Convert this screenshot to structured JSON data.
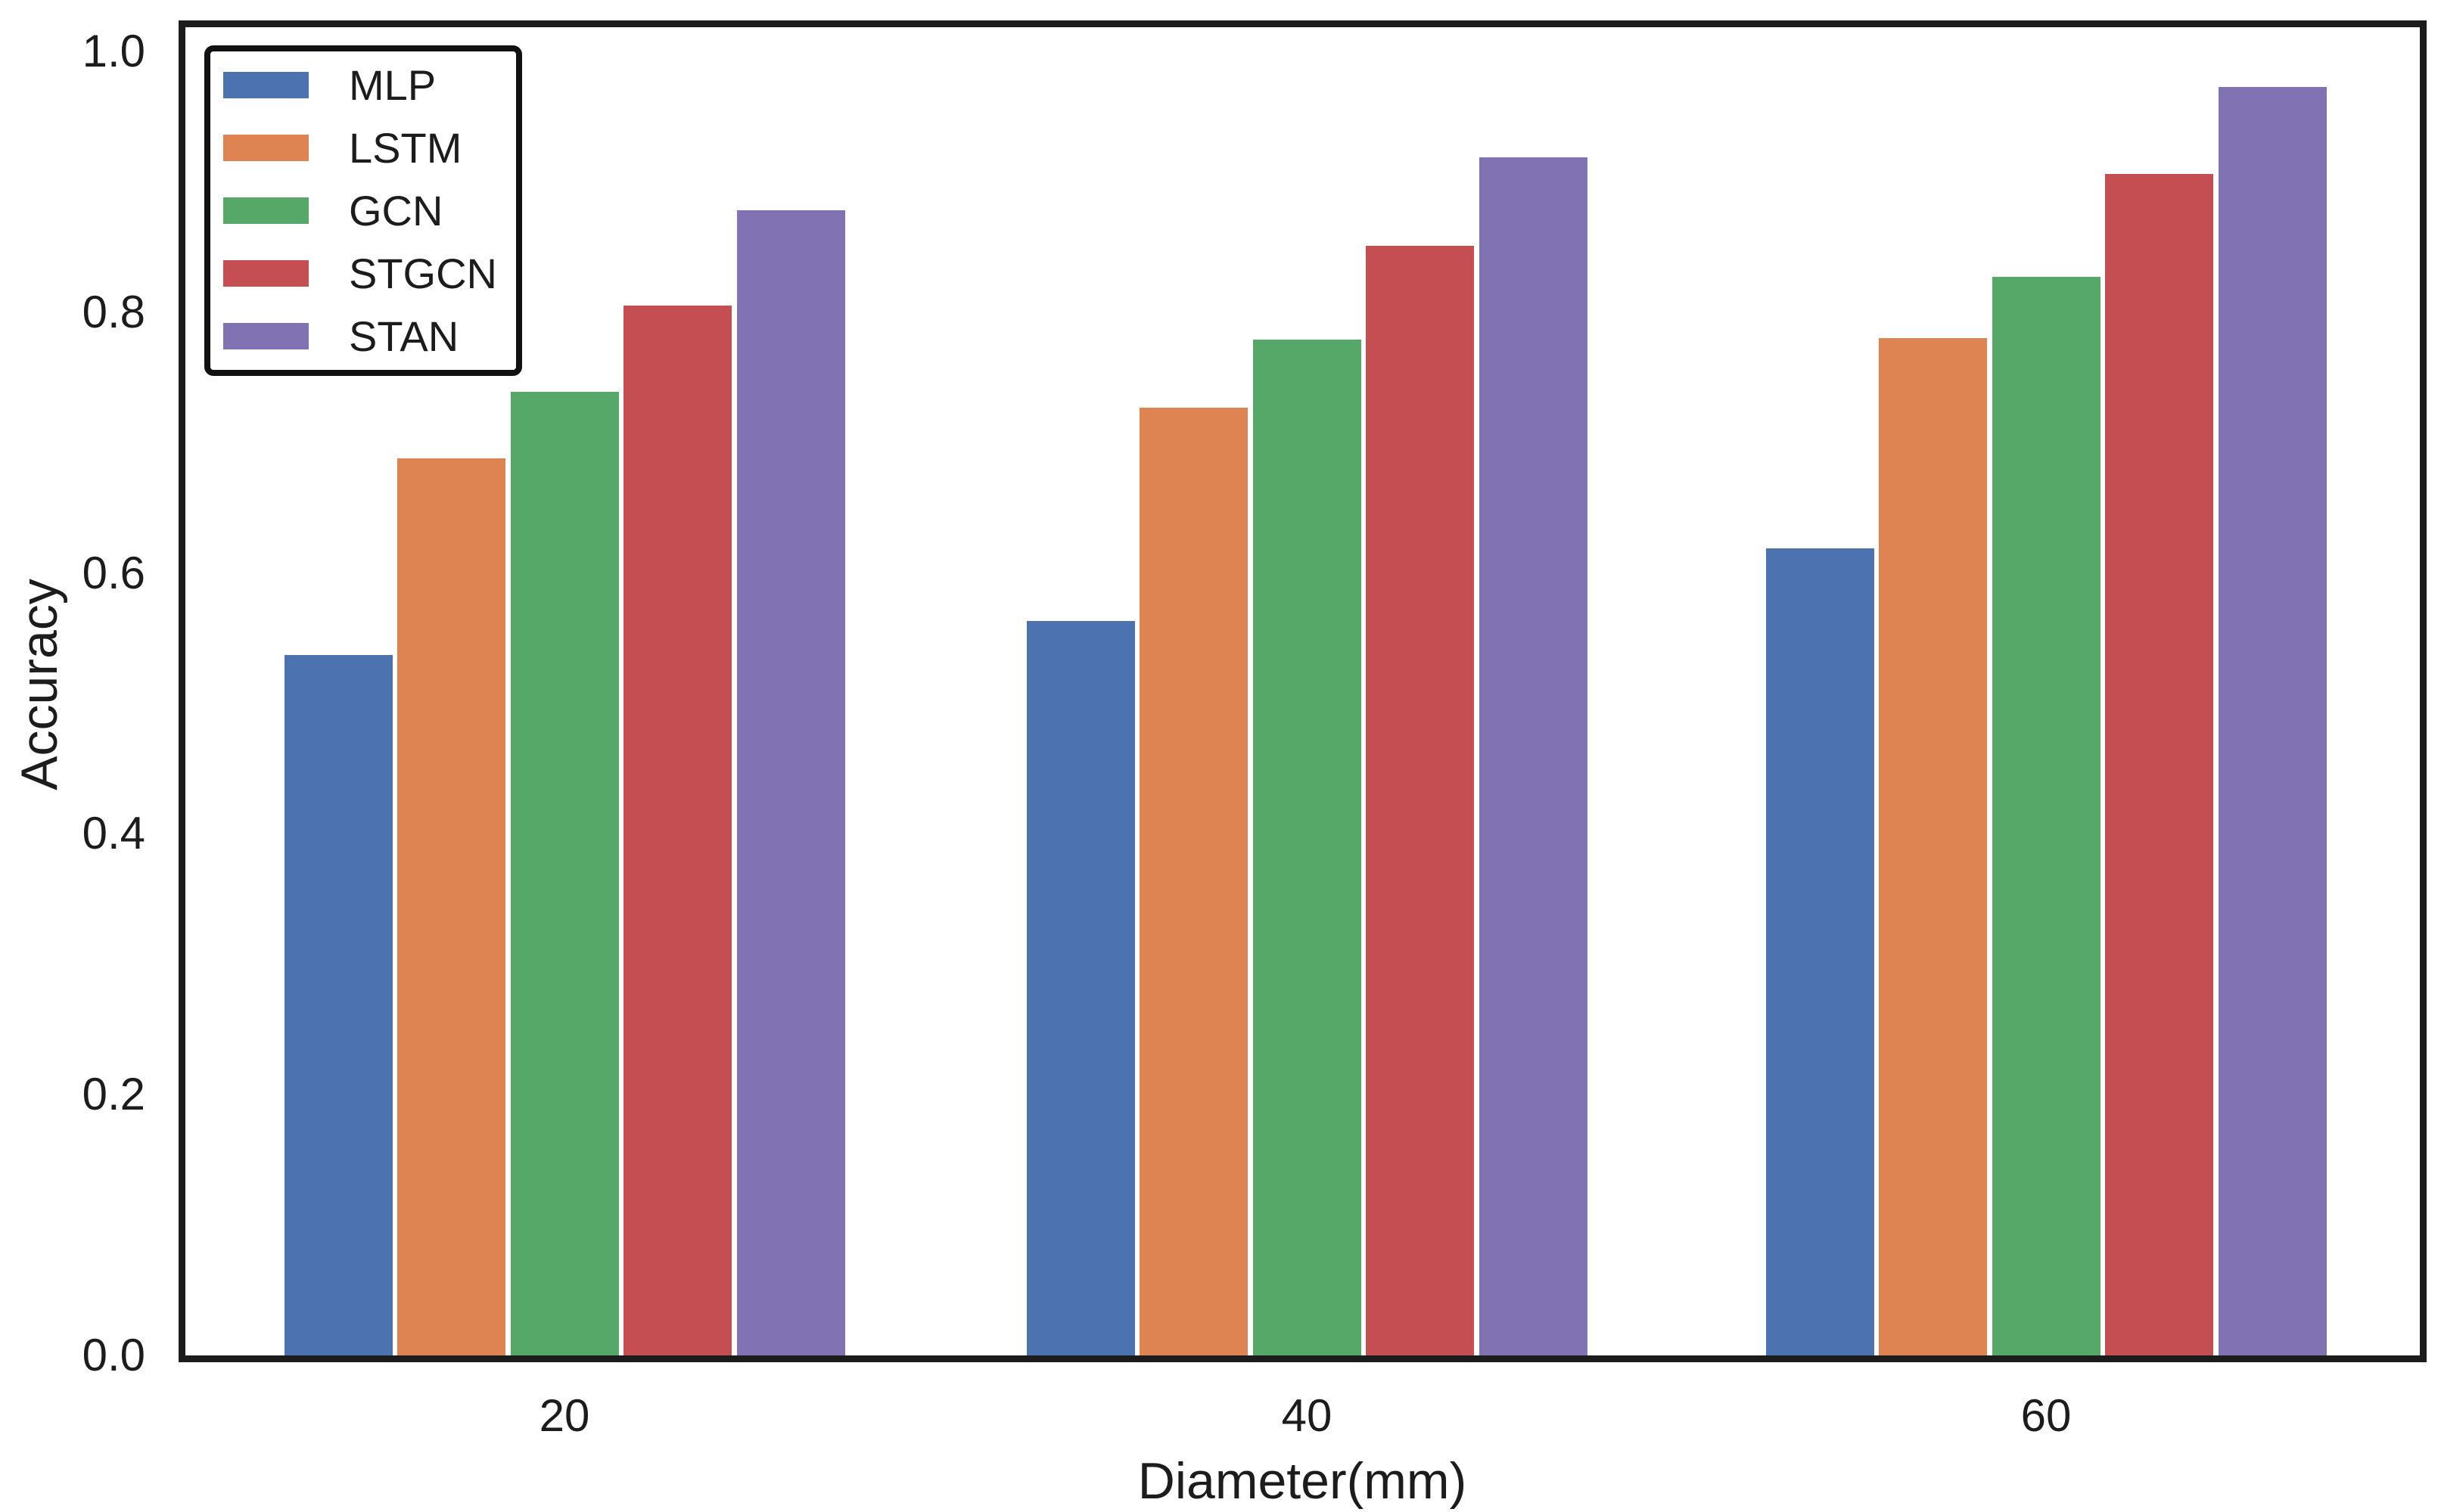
{
  "chart_data": {
    "type": "bar",
    "title": "",
    "xlabel": "Diameter(mm)",
    "ylabel": "Accuracy",
    "categories": [
      "20",
      "40",
      "60"
    ],
    "series": [
      {
        "name": "MLP",
        "color": "#4C72B0",
        "values": [
          0.537,
          0.563,
          0.619
        ]
      },
      {
        "name": "LSTM",
        "color": "#DD8452",
        "values": [
          0.688,
          0.727,
          0.78
        ]
      },
      {
        "name": "GCN",
        "color": "#55A868",
        "values": [
          0.739,
          0.779,
          0.827
        ]
      },
      {
        "name": "STGCN",
        "color": "#C44E52",
        "values": [
          0.805,
          0.851,
          0.906
        ]
      },
      {
        "name": "STAN",
        "color": "#8172B3",
        "values": [
          0.878,
          0.919,
          0.973
        ]
      }
    ],
    "ylim": [
      0.0,
      1.02
    ],
    "yticks": [
      "0.0",
      "0.2",
      "0.4",
      "0.6",
      "0.8",
      "1.0"
    ],
    "grid": false,
    "legend_position": "upper-left",
    "background_color": "#ffffff",
    "text_color": "#1c1c1c",
    "spine_color": "#1c1c1c"
  }
}
